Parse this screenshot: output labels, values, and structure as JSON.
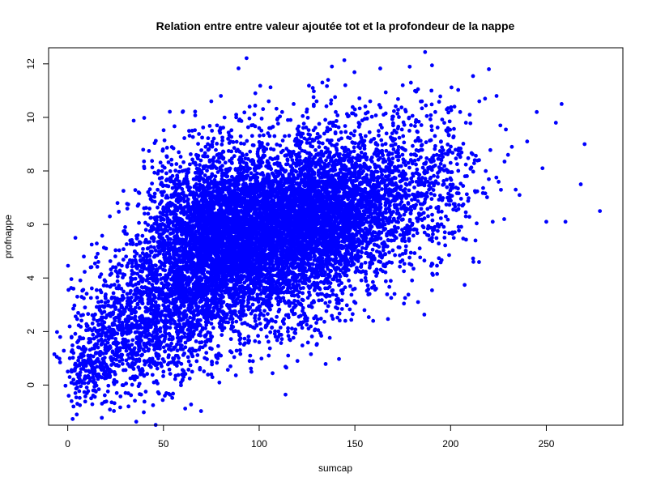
{
  "chart_data": {
    "type": "scatter",
    "title": "Relation entre entre valeur ajoutée tot et la profondeur de la nappe",
    "xlabel": "sumcap",
    "ylabel": "profnappe",
    "xlim": [
      -10,
      290
    ],
    "ylim": [
      -1.5,
      12.6
    ],
    "x_ticks": [
      0,
      50,
      100,
      150,
      200,
      250
    ],
    "y_ticks": [
      0,
      2,
      4,
      6,
      8,
      10,
      12
    ],
    "grid": false,
    "legend": "none",
    "point_color": "#0000ff",
    "series": [
      {
        "points": [
          [
            0.5,
            -0.4
          ],
          [
            2,
            -0.6
          ],
          [
            3,
            -0.8
          ],
          [
            4,
            -0.3
          ],
          [
            5,
            -0.7
          ],
          [
            1,
            0.3
          ],
          [
            2,
            0.5
          ],
          [
            3,
            0.2
          ],
          [
            4,
            0.8
          ],
          [
            5,
            0.4
          ],
          [
            6,
            0.1
          ],
          [
            7,
            0.6
          ],
          [
            3,
            1.2
          ],
          [
            5,
            1.6
          ],
          [
            2,
            1.8
          ],
          [
            6,
            1.4
          ],
          [
            8,
            0.9
          ],
          [
            9,
            1.3
          ],
          [
            3,
            3.6
          ],
          [
            4,
            5.5
          ],
          [
            5,
            3.3
          ],
          [
            7,
            2.6
          ],
          [
            10,
            2.2
          ],
          [
            12,
            1.1
          ],
          [
            14,
            0.6
          ],
          [
            15,
            1.8
          ],
          [
            16,
            3.1
          ],
          [
            18,
            2.4
          ],
          [
            20,
            1.2
          ],
          [
            22,
            0.3
          ],
          [
            24,
            0.8
          ],
          [
            25,
            2.9
          ],
          [
            28,
            3.6
          ],
          [
            30,
            1.7
          ],
          [
            12,
            4.4
          ],
          [
            16,
            4.6
          ],
          [
            20,
            5.1
          ],
          [
            22,
            6.3
          ],
          [
            26,
            6.8
          ],
          [
            30,
            5.9
          ],
          [
            33,
            2.1
          ],
          [
            35,
            4.8
          ],
          [
            37,
            7.2
          ],
          [
            40,
            8.1
          ],
          [
            42,
            6.4
          ],
          [
            45,
            3.9
          ],
          [
            47,
            7.9
          ],
          [
            50,
            5.2
          ],
          [
            52,
            4.1
          ],
          [
            55,
            7.6
          ],
          [
            58,
            8.7
          ],
          [
            60,
            10.2
          ],
          [
            62,
            7.8
          ],
          [
            65,
            9.5
          ],
          [
            66,
            4.8
          ],
          [
            70,
            6.9
          ],
          [
            72,
            8.9
          ],
          [
            75,
            10.6
          ],
          [
            78,
            9.7
          ],
          [
            80,
            10.8
          ],
          [
            82,
            7.4
          ],
          [
            85,
            9.1
          ],
          [
            88,
            10.1
          ],
          [
            90,
            8.3
          ],
          [
            92,
            6.5
          ],
          [
            95,
            10.4
          ],
          [
            98,
            10.9
          ],
          [
            100,
            9.6
          ],
          [
            103,
            8.8
          ],
          [
            105,
            10.6
          ],
          [
            108,
            9.3
          ],
          [
            110,
            8.2
          ],
          [
            112,
            10.2
          ],
          [
            115,
            9.9
          ],
          [
            118,
            10.5
          ],
          [
            120,
            8.6
          ],
          [
            122,
            9.4
          ],
          [
            125,
            10.3
          ],
          [
            128,
            11.1
          ],
          [
            130,
            10.6
          ],
          [
            133,
            11.3
          ],
          [
            136,
            11.4
          ],
          [
            138,
            11.9
          ],
          [
            140,
            10.2
          ],
          [
            145,
            11.2
          ],
          [
            148,
            9.4
          ],
          [
            150,
            10.3
          ],
          [
            152,
            9.8
          ],
          [
            155,
            8.6
          ],
          [
            158,
            10.6
          ],
          [
            160,
            9.2
          ],
          [
            165,
            10.1
          ],
          [
            168,
            8.4
          ],
          [
            170,
            9.7
          ],
          [
            175,
            11.2
          ],
          [
            178,
            8.3
          ],
          [
            180,
            7.6
          ],
          [
            182,
            9.9
          ],
          [
            185,
            10.6
          ],
          [
            190,
            11.0
          ],
          [
            192,
            10.2
          ],
          [
            195,
            9.1
          ],
          [
            198,
            10.3
          ],
          [
            200,
            8.3
          ],
          [
            202,
            10.4
          ],
          [
            205,
            10.2
          ],
          [
            208,
            9.8
          ],
          [
            210,
            10.1
          ],
          [
            213,
            5.4
          ],
          [
            215,
            10.6
          ],
          [
            218,
            10.7
          ],
          [
            220,
            11.8
          ],
          [
            222,
            6.1
          ],
          [
            224,
            10.8
          ],
          [
            226,
            9.7
          ],
          [
            228,
            6.2
          ],
          [
            230,
            8.6
          ],
          [
            232,
            8.9
          ],
          [
            234,
            7.3
          ],
          [
            236,
            7.1
          ],
          [
            240,
            9.1
          ],
          [
            245,
            10.2
          ],
          [
            248,
            8.1
          ],
          [
            250,
            6.1
          ],
          [
            255,
            9.8
          ],
          [
            258,
            10.5
          ],
          [
            260,
            6.1
          ],
          [
            268,
            7.5
          ],
          [
            270,
            9.0
          ],
          [
            278,
            6.5
          ],
          [
            183,
            3.1
          ],
          [
            175,
            4.9
          ],
          [
            170,
            5.6
          ],
          [
            165,
            4.5
          ],
          [
            160,
            3.7
          ],
          [
            155,
            2.8
          ],
          [
            150,
            3.6
          ],
          [
            145,
            2.4
          ],
          [
            140,
            2.9
          ],
          [
            135,
            3.3
          ],
          [
            130,
            1.5
          ],
          [
            125,
            2.4
          ],
          [
            120,
            0.9
          ],
          [
            115,
            2.0
          ],
          [
            110,
            1.8
          ],
          [
            105,
            1.1
          ],
          [
            100,
            1.6
          ],
          [
            95,
            0.9
          ],
          [
            90,
            1.3
          ],
          [
            85,
            0.7
          ],
          [
            80,
            1.1
          ],
          [
            75,
            0.4
          ],
          [
            70,
            1.6
          ],
          [
            65,
            0.5
          ],
          [
            60,
            0.2
          ],
          [
            55,
            1.0
          ],
          [
            50,
            0.5
          ],
          [
            45,
            0.1
          ],
          [
            40,
            0.9
          ],
          [
            35,
            0.2
          ]
        ],
        "clusters": [
          {
            "cx": 98,
            "cy": 5.8,
            "sx": 20,
            "sy": 1.3,
            "n": 2000
          },
          {
            "cx": 135,
            "cy": 6.4,
            "sx": 16,
            "sy": 1.2,
            "n": 1600
          },
          {
            "cx": 78,
            "cy": 5.0,
            "sx": 14,
            "sy": 1.4,
            "n": 1300
          },
          {
            "cx": 55,
            "cy": 3.6,
            "sx": 14,
            "sy": 1.6,
            "n": 1100
          },
          {
            "cx": 120,
            "cy": 6.6,
            "sx": 26,
            "sy": 1.7,
            "n": 1400
          },
          {
            "cx": 30,
            "cy": 2.0,
            "sx": 13,
            "sy": 1.3,
            "n": 650
          },
          {
            "cx": 165,
            "cy": 7.2,
            "sx": 18,
            "sy": 1.5,
            "n": 750
          },
          {
            "cx": 195,
            "cy": 7.8,
            "sx": 12,
            "sy": 1.5,
            "n": 220
          },
          {
            "cx": 100,
            "cy": 4.0,
            "sx": 24,
            "sy": 1.4,
            "n": 700
          },
          {
            "cx": 70,
            "cy": 7.0,
            "sx": 16,
            "sy": 1.2,
            "n": 450
          },
          {
            "cx": 12,
            "cy": 0.7,
            "sx": 6,
            "sy": 0.7,
            "n": 160
          }
        ]
      }
    ]
  }
}
